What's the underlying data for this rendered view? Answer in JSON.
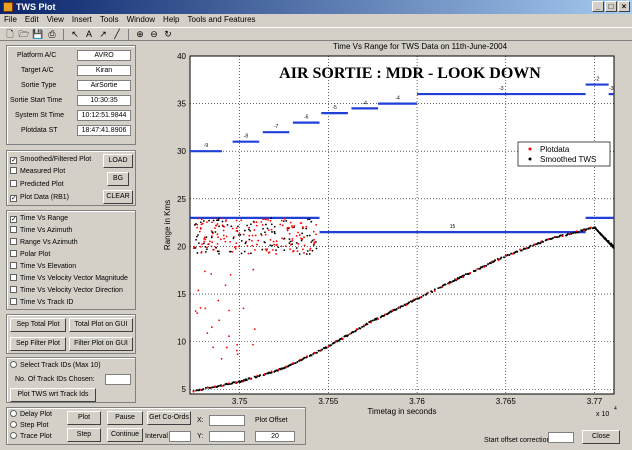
{
  "window": {
    "title": "TWS Plot",
    "controls": [
      "_",
      "□",
      "×"
    ]
  },
  "menu": [
    "File",
    "Edit",
    "View",
    "Insert",
    "Tools",
    "Window",
    "Help",
    "Tools and Features"
  ],
  "info": {
    "platform_label": "Platform A/C",
    "platform_value": "AVRO",
    "target_label": "Target A/C",
    "target_value": "Kiran",
    "sortie_label": "Sortie Type",
    "sortie_value": "AirSortie",
    "start_label": "Sortie Start Time",
    "start_value": "10:30:35",
    "system_label": "System St Time",
    "system_value": "10:12:51.9844",
    "plotdata_label": "Plotdata ST",
    "plotdata_value": "18:47:41.8906"
  },
  "plot_options": {
    "smoothed": "Smoothed/Filtered Plot",
    "measured": "Measured Plot",
    "predicted": "Predicted Plot",
    "plotdata": "Plot Data (RB1)",
    "load": "LOAD",
    "bg": "BG",
    "clear": "CLEAR"
  },
  "plot_types": [
    "Time Vs Range",
    "Time Vs Azimuth",
    "Range Vs Azimuth",
    "Polar Plot",
    "Time Vs Elevation",
    "Time Vs Velocity Vector Magnitude",
    "Time Vs Velocity Vector Direction",
    "Time Vs Track ID"
  ],
  "buttons": {
    "sep_total": "Sep Total Plot",
    "total_gui": "Total Plot on GUI",
    "sep_filter": "Sep Filter Plot",
    "filter_gui": "Filter Plot on GUI"
  },
  "track": {
    "select": "Select Track IDs (Max 10)",
    "chosen": "No. Of Track IDs Chosen:",
    "plot_btn": "Plot TWS wrt Track Ids"
  },
  "bottom": {
    "delay": "Delay Plot",
    "step": "Step Plot",
    "trace": "Trace Plot",
    "plot": "Plot",
    "pause": "Pause",
    "get_coords": "Get Co-Ords",
    "step_btn": "Step",
    "continue": "Continue",
    "interval": "Interval",
    "x": "X:",
    "y": "Y:",
    "plot_offset": "Plot Offset",
    "offset_value": "20",
    "start_offset": "Start offset correction",
    "close": "Close"
  },
  "chart_data": {
    "type": "scatter",
    "title": "Time Vs Range for TWS Data on 11th-June-2004",
    "annotation": "AIR SORTIE :  MDR - LOOK DOWN",
    "xlabel": "Timetag in seconds",
    "ylabel": "Range in Kms",
    "x_multiplier": "x 10",
    "x_multiplier_exp": "4",
    "xlim": [
      3.7472,
      3.7711
    ],
    "ylim": [
      4.5,
      40
    ],
    "xticks": [
      "3.75",
      "3.755",
      "3.76",
      "3.765",
      "3.77"
    ],
    "yticks": [
      "5",
      "10",
      "15",
      "20",
      "25",
      "30",
      "35",
      "40"
    ],
    "grid": true,
    "legend_position": "top-right",
    "legend": [
      {
        "name": "Plotdata",
        "color": "#ff0000"
      },
      {
        "name": "Smoothed TWS",
        "color": "#000000"
      }
    ],
    "reference_segments": [
      {
        "x": [
          3.7472,
          3.749
        ],
        "y": 30,
        "label": "-9"
      },
      {
        "x": [
          3.7496,
          3.7511
        ],
        "y": 31,
        "label": "-8"
      },
      {
        "x": [
          3.7513,
          3.7528
        ],
        "y": 32,
        "label": "-7"
      },
      {
        "x": [
          3.753,
          3.7545
        ],
        "y": 33,
        "label": "-6"
      },
      {
        "x": [
          3.7546,
          3.7561
        ],
        "y": 34,
        "label": "-5"
      },
      {
        "x": [
          3.7563,
          3.7578
        ],
        "y": 34.5,
        "label": "-4"
      },
      {
        "x": [
          3.7578,
          3.76
        ],
        "y": 35,
        "label": "-4"
      },
      {
        "x": [
          3.76,
          3.7695
        ],
        "y": 36,
        "label": "-3"
      },
      {
        "x": [
          3.7695,
          3.7708
        ],
        "y": 37,
        "label": "-2"
      },
      {
        "x": [
          3.7708,
          3.7711
        ],
        "y": 36,
        "label": "-3"
      },
      {
        "x": [
          3.7472,
          3.7545
        ],
        "y": 23,
        "label": ""
      },
      {
        "x": [
          3.7545,
          3.7695
        ],
        "y": 21.5,
        "label": "15"
      },
      {
        "x": [
          3.7695,
          3.7711
        ],
        "y": 23,
        "label": ""
      }
    ],
    "smoothed_line": {
      "x": [
        3.7474,
        3.75,
        3.7525,
        3.755,
        3.7575,
        3.76,
        3.7625,
        3.765,
        3.7675,
        3.769,
        3.77,
        3.7705,
        3.7711
      ],
      "y": [
        4.8,
        5.8,
        7.2,
        9.5,
        12.2,
        14.5,
        16.8,
        19.0,
        20.8,
        21.5,
        22.0,
        21.0,
        20.0
      ]
    }
  }
}
